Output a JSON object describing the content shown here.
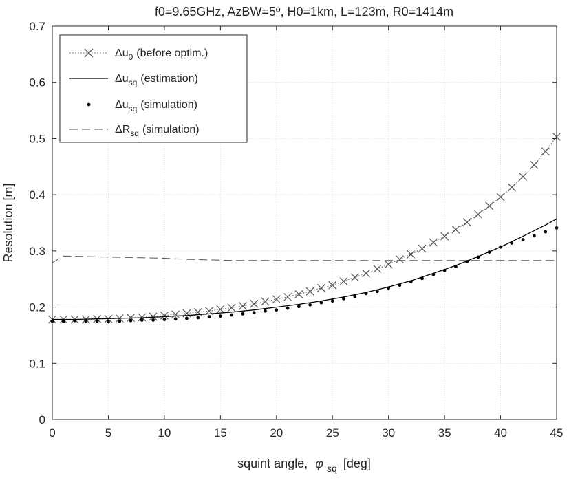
{
  "chart_data": {
    "type": "line",
    "title": "f0=9.65GHz, AzBW=5º, H0=1km, L=123m, R0=1414m",
    "xlabel": {
      "prefix": "squint angle,",
      "symbol": "φ",
      "subscript": "sq",
      "unit": "[deg]"
    },
    "ylabel": "Resolution [m]",
    "xlim": [
      0,
      45
    ],
    "ylim": [
      0,
      0.7
    ],
    "xticks": [
      "0",
      "5",
      "10",
      "15",
      "20",
      "25",
      "30",
      "35",
      "40",
      "45"
    ],
    "yticks": [
      "0",
      "0.1",
      "0.2",
      "0.3",
      "0.4",
      "0.5",
      "0.6",
      "0.7"
    ],
    "grid": true,
    "legend_position": "top-left",
    "series": [
      {
        "name": "Δu0 (before optim.)",
        "legend_parts": {
          "main": "Δu",
          "sub": "0",
          "rest": "(before optim.)"
        },
        "style": "dotted-line-with-x-markers",
        "color": "#555555",
        "x": [
          0,
          1,
          2,
          3,
          4,
          5,
          6,
          7,
          8,
          9,
          10,
          11,
          12,
          13,
          14,
          15,
          16,
          17,
          18,
          19,
          20,
          21,
          22,
          23,
          24,
          25,
          26,
          27,
          28,
          29,
          30,
          31,
          32,
          33,
          34,
          35,
          36,
          37,
          38,
          39,
          40,
          41,
          42,
          43,
          44,
          45
        ],
        "y": [
          0.178,
          0.178,
          0.178,
          0.178,
          0.179,
          0.179,
          0.18,
          0.181,
          0.182,
          0.183,
          0.185,
          0.187,
          0.189,
          0.191,
          0.193,
          0.196,
          0.199,
          0.202,
          0.206,
          0.21,
          0.214,
          0.218,
          0.223,
          0.228,
          0.234,
          0.239,
          0.246,
          0.253,
          0.26,
          0.268,
          0.276,
          0.285,
          0.294,
          0.304,
          0.315,
          0.326,
          0.338,
          0.351,
          0.365,
          0.38,
          0.396,
          0.413,
          0.432,
          0.453,
          0.477,
          0.503
        ]
      },
      {
        "name": "Δusq (estimation)",
        "legend_parts": {
          "main": "Δu",
          "sub": "sq",
          "rest": "(estimation)"
        },
        "style": "solid",
        "color": "#000000",
        "x": [
          0,
          2,
          4,
          6,
          8,
          10,
          12,
          14,
          16,
          18,
          20,
          22,
          24,
          26,
          28,
          30,
          32,
          34,
          36,
          38,
          40,
          42,
          44,
          45
        ],
        "y": [
          0.178,
          0.178,
          0.179,
          0.18,
          0.181,
          0.183,
          0.185,
          0.188,
          0.191,
          0.195,
          0.2,
          0.205,
          0.211,
          0.218,
          0.226,
          0.236,
          0.247,
          0.26,
          0.274,
          0.29,
          0.307,
          0.326,
          0.346,
          0.357
        ]
      },
      {
        "name": "Δusq (simulation)",
        "legend_parts": {
          "main": "Δu",
          "sub": "sq",
          "rest": "(simulation)"
        },
        "style": "dots",
        "color": "#000000",
        "x": [
          0,
          1,
          2,
          3,
          4,
          5,
          6,
          7,
          8,
          9,
          10,
          11,
          12,
          13,
          14,
          15,
          16,
          17,
          18,
          19,
          20,
          21,
          22,
          23,
          24,
          25,
          26,
          27,
          28,
          29,
          30,
          31,
          32,
          33,
          34,
          35,
          36,
          37,
          38,
          39,
          40,
          41,
          42,
          43,
          44,
          45
        ],
        "y": [
          0.175,
          0.175,
          0.176,
          0.175,
          0.175,
          0.174,
          0.175,
          0.176,
          0.177,
          0.177,
          0.178,
          0.179,
          0.18,
          0.181,
          0.183,
          0.184,
          0.186,
          0.188,
          0.19,
          0.193,
          0.195,
          0.198,
          0.201,
          0.204,
          0.208,
          0.211,
          0.215,
          0.219,
          0.224,
          0.228,
          0.234,
          0.239,
          0.245,
          0.251,
          0.258,
          0.265,
          0.272,
          0.281,
          0.289,
          0.298,
          0.307,
          0.314,
          0.32,
          0.327,
          0.334,
          0.341
        ]
      },
      {
        "name": "ΔRsq (simulation)",
        "legend_parts": {
          "main": "ΔR",
          "sub": "sq",
          "rest": "(simulation)"
        },
        "style": "dashed",
        "color": "#555555",
        "x": [
          0,
          1,
          3,
          5,
          8,
          10,
          12,
          14,
          16,
          20,
          25,
          30,
          35,
          40,
          45
        ],
        "y": [
          0.279,
          0.291,
          0.29,
          0.289,
          0.288,
          0.287,
          0.285,
          0.284,
          0.283,
          0.283,
          0.283,
          0.283,
          0.283,
          0.283,
          0.283
        ]
      }
    ]
  }
}
